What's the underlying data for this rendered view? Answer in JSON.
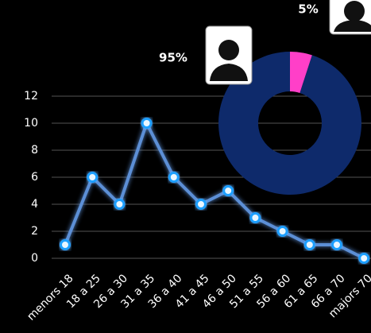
{
  "chart_data": [
    {
      "type": "line",
      "categories": [
        "menors 18",
        "18 a 25",
        "26 a 30",
        "31 a 35",
        "36 a 40",
        "41 a 45",
        "46 a 50",
        "51 a 55",
        "56 a 60",
        "61 a 65",
        "66 a 70",
        "majors 70"
      ],
      "values": [
        1,
        6,
        4,
        10,
        6,
        4,
        5,
        3,
        2,
        1,
        1,
        0
      ],
      "color": "#5b8fd6",
      "ylim": [
        0,
        12
      ],
      "yticks": [
        0,
        2,
        4,
        6,
        8,
        10,
        12
      ],
      "grid": true
    },
    {
      "type": "pie",
      "values": [
        95,
        5
      ],
      "value_labels": [
        "95%",
        "5%"
      ],
      "colors": [
        "#0e2a6b",
        "#ff3fc8"
      ]
    }
  ]
}
